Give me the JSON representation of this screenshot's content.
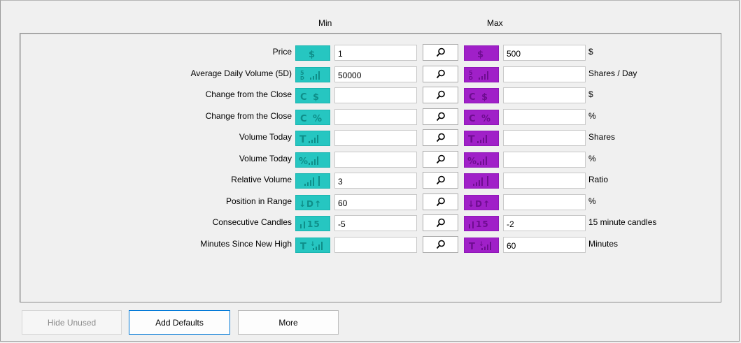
{
  "headers": {
    "min": "Min",
    "max": "Max"
  },
  "rows": [
    {
      "label": "Price",
      "icon": "dollar-icon",
      "min": "1",
      "max": "500",
      "unit": "$"
    },
    {
      "label": "Average Daily Volume (5D)",
      "icon": "volume-5d-icon",
      "min": "50000",
      "max": "",
      "unit": "Shares / Day"
    },
    {
      "label": "Change from the Close",
      "icon": "change-dollar-icon",
      "min": "",
      "max": "",
      "unit": "$"
    },
    {
      "label": "Change from the Close",
      "icon": "change-percent-icon",
      "min": "",
      "max": "",
      "unit": "%"
    },
    {
      "label": "Volume Today",
      "icon": "volume-today-icon",
      "min": "",
      "max": "",
      "unit": "Shares"
    },
    {
      "label": "Volume Today",
      "icon": "volume-percent-icon",
      "min": "",
      "max": "",
      "unit": "%"
    },
    {
      "label": "Relative Volume",
      "icon": "relative-volume-icon",
      "min": "3",
      "max": "",
      "unit": "Ratio"
    },
    {
      "label": "Position in Range",
      "icon": "position-range-icon",
      "min": "60",
      "max": "",
      "unit": "%"
    },
    {
      "label": "Consecutive Candles",
      "icon": "candles-icon",
      "min": "-5",
      "max": "-2",
      "unit": "15 minute candles"
    },
    {
      "label": "Minutes Since New High",
      "icon": "new-high-icon",
      "min": "",
      "max": "60",
      "unit": "Minutes"
    }
  ],
  "buttons": {
    "hide_unused": "Hide Unused",
    "add_defaults": "Add Defaults",
    "more": "More"
  },
  "colors": {
    "min_icon": "#26c6c1",
    "max_icon": "#a020c8",
    "focus_border": "#0078d7"
  }
}
